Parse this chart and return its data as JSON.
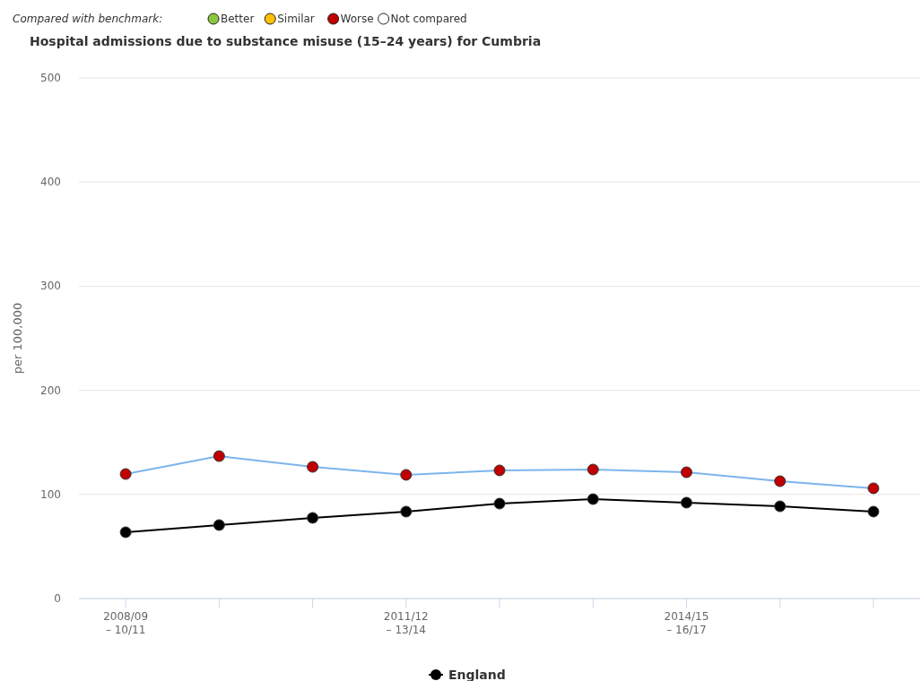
{
  "chart_data": {
    "type": "line",
    "title": "Hospital admissions due to substance misuse (15–24 years) for Cumbria",
    "ylabel": "per 100,000",
    "annotations": [
      "Compared with benchmark:",
      "Better",
      "Similar",
      "Worse",
      "Not compared"
    ],
    "categories": [
      "2008/09 – 10/11",
      null,
      null,
      "2011/12 – 13/14",
      null,
      null,
      "2014/15 – 16/17",
      null,
      null
    ],
    "series": [
      {
        "color": "#7cb5ec",
        "colors": [
          "#c00000",
          "#c00000",
          "#c00000",
          "#c00000",
          "#c00000",
          "#c00000",
          "#c00000",
          "#c00000",
          "#c00000"
        ],
        "values": [
          119.6,
          136.8,
          126.5,
          118.8,
          123.1,
          123.9,
          121.3,
          112.7,
          105.9
        ]
      },
      {
        "name": "England",
        "color": "#000000",
        "values": [
          63.7,
          70.6,
          77.5,
          83.5,
          91.2,
          95.5,
          92.1,
          88.6,
          83.5
        ]
      }
    ],
    "ylim": [
      0,
      500
    ],
    "yticks": [
      0,
      100,
      200,
      300,
      400,
      500
    ],
    "grid": "y",
    "legend": "bottom",
    "marker": "circle",
    "line_style": "solid"
  }
}
